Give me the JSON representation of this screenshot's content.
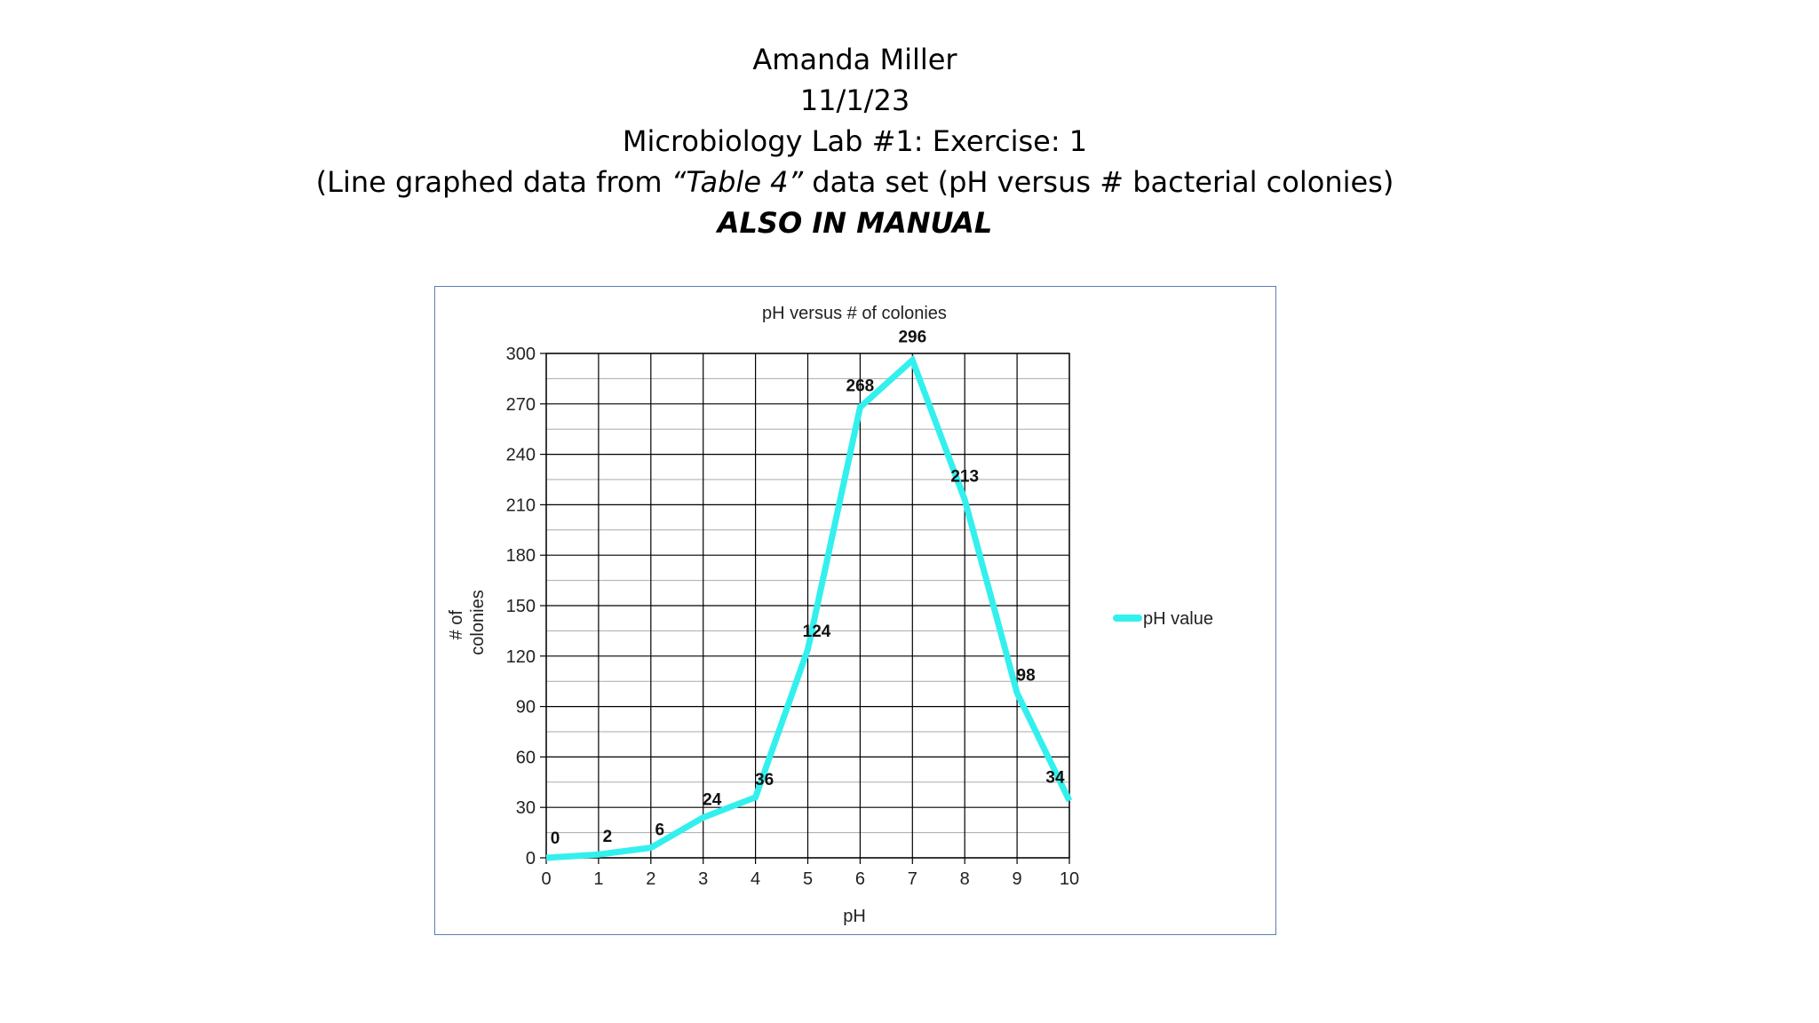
{
  "header": {
    "name": "Amanda Miller",
    "date": "11/1/23",
    "lab": "Microbiology Lab #1: Exercise: 1",
    "desc_pre": "(Line graphed data from ",
    "desc_table": "“Table 4”",
    "desc_post": "  data set (pH versus # bacterial colonies)",
    "manual": "ALSO IN MANUAL"
  },
  "colors": {
    "series": "#33f0ee",
    "frame": "#5b7fb8",
    "grid_major": "#000000",
    "grid_minor": "#aaaaaa"
  },
  "chart_data": {
    "type": "line",
    "title": "pH versus # of colonies",
    "xlabel": "pH",
    "ylabel_lines": [
      "# of",
      "colonies"
    ],
    "xlim": [
      0,
      10
    ],
    "ylim": [
      0,
      300
    ],
    "x_ticks": [
      "0",
      "1",
      "2",
      "3",
      "4",
      "5",
      "6",
      "7",
      "8",
      "9",
      "10"
    ],
    "y_ticks": [
      "0",
      "30",
      "60",
      "90",
      "120",
      "150",
      "180",
      "210",
      "240",
      "270",
      "300"
    ],
    "y_minor_step": 15,
    "grid": true,
    "legend_position": "right",
    "series": [
      {
        "name": "pH value",
        "x": [
          0,
          1,
          2,
          3,
          4,
          5,
          6,
          7,
          8,
          9,
          10
        ],
        "values": [
          0,
          2,
          6,
          24,
          36,
          124,
          268,
          296,
          213,
          98,
          34
        ],
        "labels": [
          "0",
          "2",
          "6",
          "24",
          "36",
          "124",
          "268",
          "296",
          "213",
          "98",
          "34"
        ]
      }
    ]
  }
}
